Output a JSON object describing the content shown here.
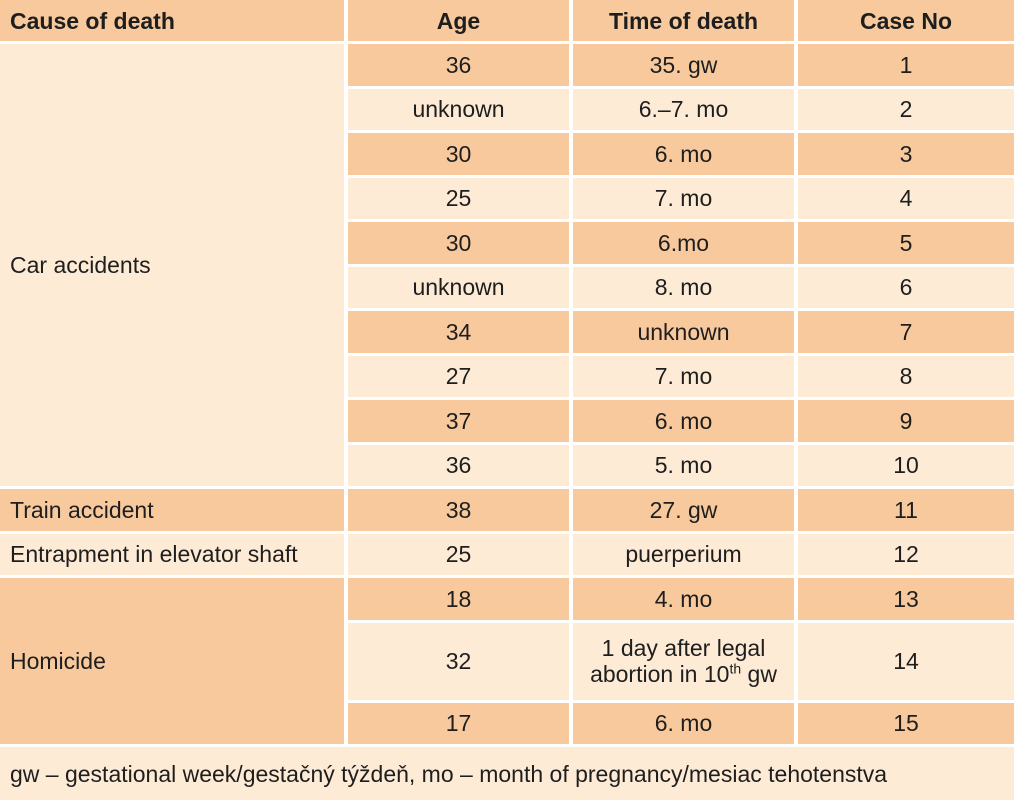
{
  "headers": [
    "Cause of death",
    "Age",
    "Time of death",
    "Case No"
  ],
  "groups": [
    {
      "cause": "Car accidents",
      "rows": [
        {
          "age": "36",
          "time": "35. gw",
          "case": "1"
        },
        {
          "age": "unknown",
          "time": "6.–7. mo",
          "case": "2"
        },
        {
          "age": "30",
          "time": "6. mo",
          "case": "3"
        },
        {
          "age": "25",
          "time": "7. mo",
          "case": "4"
        },
        {
          "age": "30",
          "time": "6.mo",
          "case": "5"
        },
        {
          "age": "unknown",
          "time": "8. mo",
          "case": "6"
        },
        {
          "age": "34",
          "time": "unknown",
          "case": "7"
        },
        {
          "age": "27",
          "time": "7. mo",
          "case": "8"
        },
        {
          "age": "37",
          "time": "6. mo",
          "case": "9"
        },
        {
          "age": "36",
          "time": "5. mo",
          "case": "10"
        }
      ]
    },
    {
      "cause": "Train accident",
      "rows": [
        {
          "age": "38",
          "time": "27. gw",
          "case": "11"
        }
      ]
    },
    {
      "cause": "Entrapment in elevator shaft",
      "rows": [
        {
          "age": "25",
          "time": "puerperium",
          "case": "12"
        }
      ]
    },
    {
      "cause": "Homicide",
      "rows": [
        {
          "age": "18",
          "time": "4. mo",
          "case": "13"
        },
        {
          "age": "32",
          "time_line1": "1 day after legal",
          "time_line2_pre": "abortion in 10",
          "time_line2_sup": "th",
          "time_line2_post": " gw",
          "case": "14"
        },
        {
          "age": "17",
          "time": "6. mo",
          "case": "15"
        }
      ]
    }
  ],
  "footnote": "gw – gestational week/gestačný týždeň, mo – month of pregnancy/mesiac tehotenstva",
  "colors": {
    "dark": "#f7c99c",
    "light": "#fdebd6",
    "divider": "#ffffff"
  }
}
